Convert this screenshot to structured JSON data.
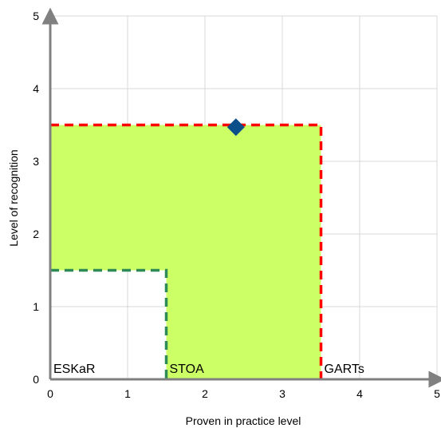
{
  "chart_data": {
    "type": "scatter",
    "title": "",
    "xlabel": "Proven  in practice level",
    "ylabel": "Level of recognition",
    "xlim": [
      0,
      5
    ],
    "ylim": [
      0,
      5
    ],
    "x_ticks": [
      "0",
      "1",
      "2",
      "3",
      "4",
      "5"
    ],
    "y_ticks": [
      "0",
      "1",
      "2",
      "3",
      "4",
      "5"
    ],
    "grid": true,
    "regions": [
      {
        "name": "ESKaR",
        "x_max": 1.5,
        "y_max": 1.5,
        "fill": "none",
        "border_color": "#2e8b57",
        "border_style": "dashed"
      },
      {
        "name": "STOA",
        "x_max": 3.5,
        "y_max": 3.5,
        "fill": "#ccff66",
        "border_color": "#ff0000",
        "border_style": "dashed"
      },
      {
        "name": "GARTs",
        "x_max": 5,
        "y_max": 5,
        "fill": "none",
        "border_color": "none",
        "border_style": "none"
      }
    ],
    "points": [
      {
        "x": 2.4,
        "y": 3.47,
        "marker": "diamond",
        "color": "#0b4f8a"
      }
    ],
    "colors": {
      "axis": "#808080",
      "grid": "#d9d9d9",
      "stoa_fill": "#ccff66",
      "stoa_border": "#ff0000",
      "eskar_border": "#2e8b57",
      "point": "#0b4f8a"
    }
  }
}
